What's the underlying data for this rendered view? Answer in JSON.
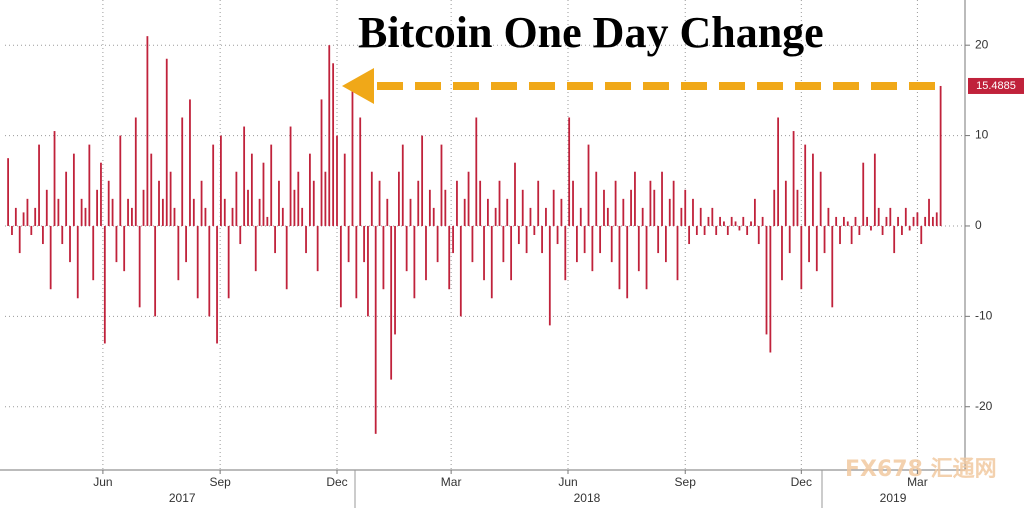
{
  "chart_data": {
    "type": "bar",
    "title": "Bitcoin One Day Change",
    "watermark": "FX678 汇通网",
    "color": "#c0223b",
    "grid": true,
    "values": [
      7.5,
      -1,
      2,
      -3,
      1.5,
      3,
      -1,
      2,
      9,
      -2,
      4,
      -7,
      10.5,
      3,
      -2,
      6,
      -4,
      8,
      -8,
      3,
      2,
      9,
      -6,
      4,
      7,
      -13,
      5,
      3,
      -4,
      10,
      -5,
      3,
      2,
      12,
      -9,
      4,
      21,
      8,
      -10,
      5,
      3,
      18.5,
      6,
      2,
      -6,
      12,
      -4,
      14,
      3,
      -8,
      5,
      2,
      -10,
      9,
      -13,
      10,
      3,
      -8,
      2,
      6,
      -2,
      11,
      4,
      8,
      -5,
      3,
      7,
      1,
      9,
      -3,
      5,
      2,
      -7,
      11,
      4,
      6,
      2,
      -3,
      8,
      5,
      -5,
      14,
      6,
      20,
      18,
      10,
      -9,
      8,
      -4,
      15.5,
      -8,
      12,
      -4,
      -10,
      6,
      -23,
      5,
      -7,
      3,
      -17,
      -12,
      6,
      9,
      -5,
      3,
      -8,
      5,
      10,
      -6,
      4,
      2,
      -4,
      9,
      4,
      -7,
      -3,
      5,
      -10,
      3,
      6,
      -4,
      12,
      5,
      -6,
      3,
      -8,
      2,
      5,
      -4,
      3,
      -6,
      7,
      -2,
      4,
      -3,
      2,
      -1,
      5,
      -3,
      2,
      -11,
      4,
      -2,
      3,
      -6,
      12,
      5,
      -4,
      2,
      -3,
      9,
      -5,
      6,
      -3,
      4,
      2,
      -4,
      5,
      -7,
      3,
      -8,
      4,
      6,
      -5,
      2,
      -7,
      5,
      4,
      -3,
      6,
      -4,
      3,
      5,
      -6,
      2,
      4,
      -2,
      3,
      -1,
      2,
      -1,
      1,
      2,
      -1,
      1,
      0.5,
      -1,
      1,
      0.5,
      -0.5,
      1,
      -1,
      0.5,
      3,
      -2,
      1,
      -12,
      -14,
      4,
      12,
      -6,
      5,
      -3,
      10.5,
      4,
      -7,
      9,
      -4,
      8,
      -5,
      6,
      -3,
      2,
      -9,
      1,
      -2,
      1,
      0.5,
      -2,
      1,
      -1,
      7,
      1,
      -0.5,
      8,
      2,
      -1,
      1,
      2,
      -3,
      1,
      -1,
      2,
      -0.5,
      1,
      1.5,
      -2,
      1,
      3,
      1,
      1.5,
      15.4885
    ],
    "xlim": [
      -0.8,
      247.3
    ],
    "xticks": [
      {
        "value": 24.5,
        "label": "Jun"
      },
      {
        "value": 54.8,
        "label": "Sep"
      },
      {
        "value": 85,
        "label": "Dec"
      },
      {
        "value": 114.5,
        "label": "Mar"
      },
      {
        "value": 144.7,
        "label": "Jun"
      },
      {
        "value": 175,
        "label": "Sep"
      },
      {
        "value": 205,
        "label": "Dec"
      },
      {
        "value": 235,
        "label": "Mar"
      }
    ],
    "years": [
      {
        "value": 45,
        "label": "2017"
      },
      {
        "value": 149.6,
        "label": "2018"
      },
      {
        "value": 228.7,
        "label": "2019"
      }
    ],
    "ylim": [
      -27,
      25
    ],
    "yticks": [
      20,
      10,
      0,
      -10,
      -20
    ]
  }
}
